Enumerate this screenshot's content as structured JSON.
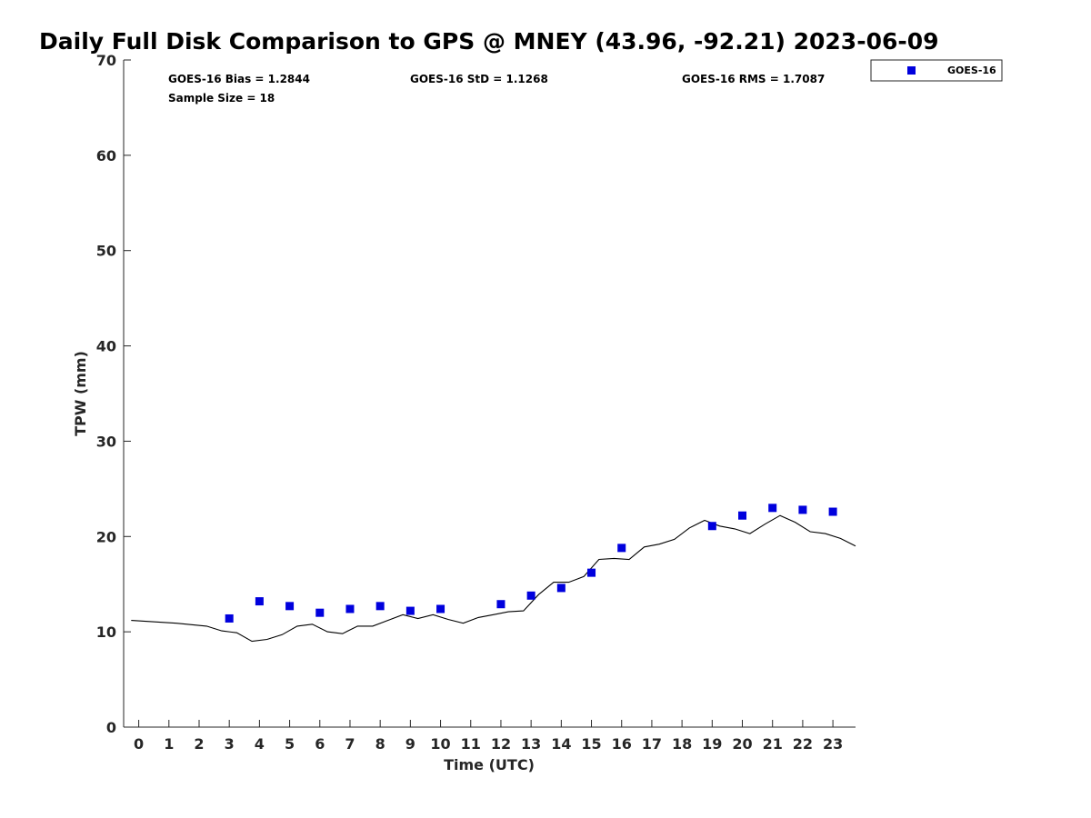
{
  "chart_data": {
    "type": "scatter",
    "title": "Daily Full Disk Comparison to GPS @ MNEY (43.96, -92.21) 2023-06-09",
    "xlabel": "Time (UTC)",
    "ylabel": "TPW (mm)",
    "xlim": [
      -0.5,
      23.75
    ],
    "ylim": [
      0,
      70
    ],
    "x_ticks": [
      "0",
      "1",
      "2",
      "3",
      "4",
      "5",
      "6",
      "7",
      "8",
      "9",
      "10",
      "11",
      "12",
      "13",
      "14",
      "15",
      "16",
      "17",
      "18",
      "19",
      "20",
      "21",
      "22",
      "23"
    ],
    "y_ticks": [
      "0",
      "10",
      "20",
      "30",
      "40",
      "50",
      "60",
      "70"
    ],
    "grid": false,
    "legend_position": "top-right",
    "stats": {
      "bias": "GOES-16 Bias = 1.2844",
      "std": "GOES-16 StD = 1.1268",
      "rms": "GOES-16 RMS = 1.7087",
      "sample": "Sample Size = 18"
    },
    "series": [
      {
        "name": "GOES-16",
        "kind": "scatter",
        "marker": "square",
        "color": "#0000dd",
        "x": [
          3,
          4,
          5,
          6,
          7,
          8,
          9,
          10,
          12,
          13,
          14,
          15,
          16,
          19,
          20,
          21,
          22,
          23
        ],
        "y": [
          11.4,
          13.2,
          12.7,
          12.0,
          12.4,
          12.7,
          12.2,
          12.4,
          12.9,
          13.8,
          14.6,
          16.2,
          18.8,
          21.1,
          22.2,
          23.0,
          22.8,
          22.6
        ]
      },
      {
        "kind": "line",
        "color": "#000000",
        "x": [
          -0.25,
          1.25,
          2.25,
          2.75,
          3.25,
          3.75,
          4.25,
          4.75,
          5.25,
          5.75,
          6.25,
          6.75,
          7.25,
          7.75,
          8.25,
          8.75,
          9.25,
          9.75,
          10.25,
          10.75,
          11.25,
          11.75,
          12.25,
          12.75,
          13.25,
          13.75,
          14.25,
          14.75,
          15.25,
          15.75,
          16.25,
          16.75,
          17.25,
          17.75,
          18.25,
          18.75,
          19.25,
          19.75,
          20.25,
          20.75,
          21.25,
          21.75,
          22.25,
          22.75,
          23.25,
          23.75
        ],
        "y": [
          11.2,
          10.9,
          10.6,
          10.1,
          9.9,
          9.0,
          9.2,
          9.7,
          10.6,
          10.8,
          10.0,
          9.8,
          10.6,
          10.6,
          11.2,
          11.8,
          11.4,
          11.8,
          11.3,
          10.9,
          11.5,
          11.8,
          12.1,
          12.2,
          13.9,
          15.2,
          15.2,
          15.8,
          17.6,
          17.7,
          17.6,
          18.9,
          19.2,
          19.7,
          20.9,
          21.7,
          21.1,
          20.8,
          20.3,
          21.3,
          22.2,
          21.5,
          20.5,
          20.3,
          19.8,
          19.0
        ]
      }
    ]
  }
}
